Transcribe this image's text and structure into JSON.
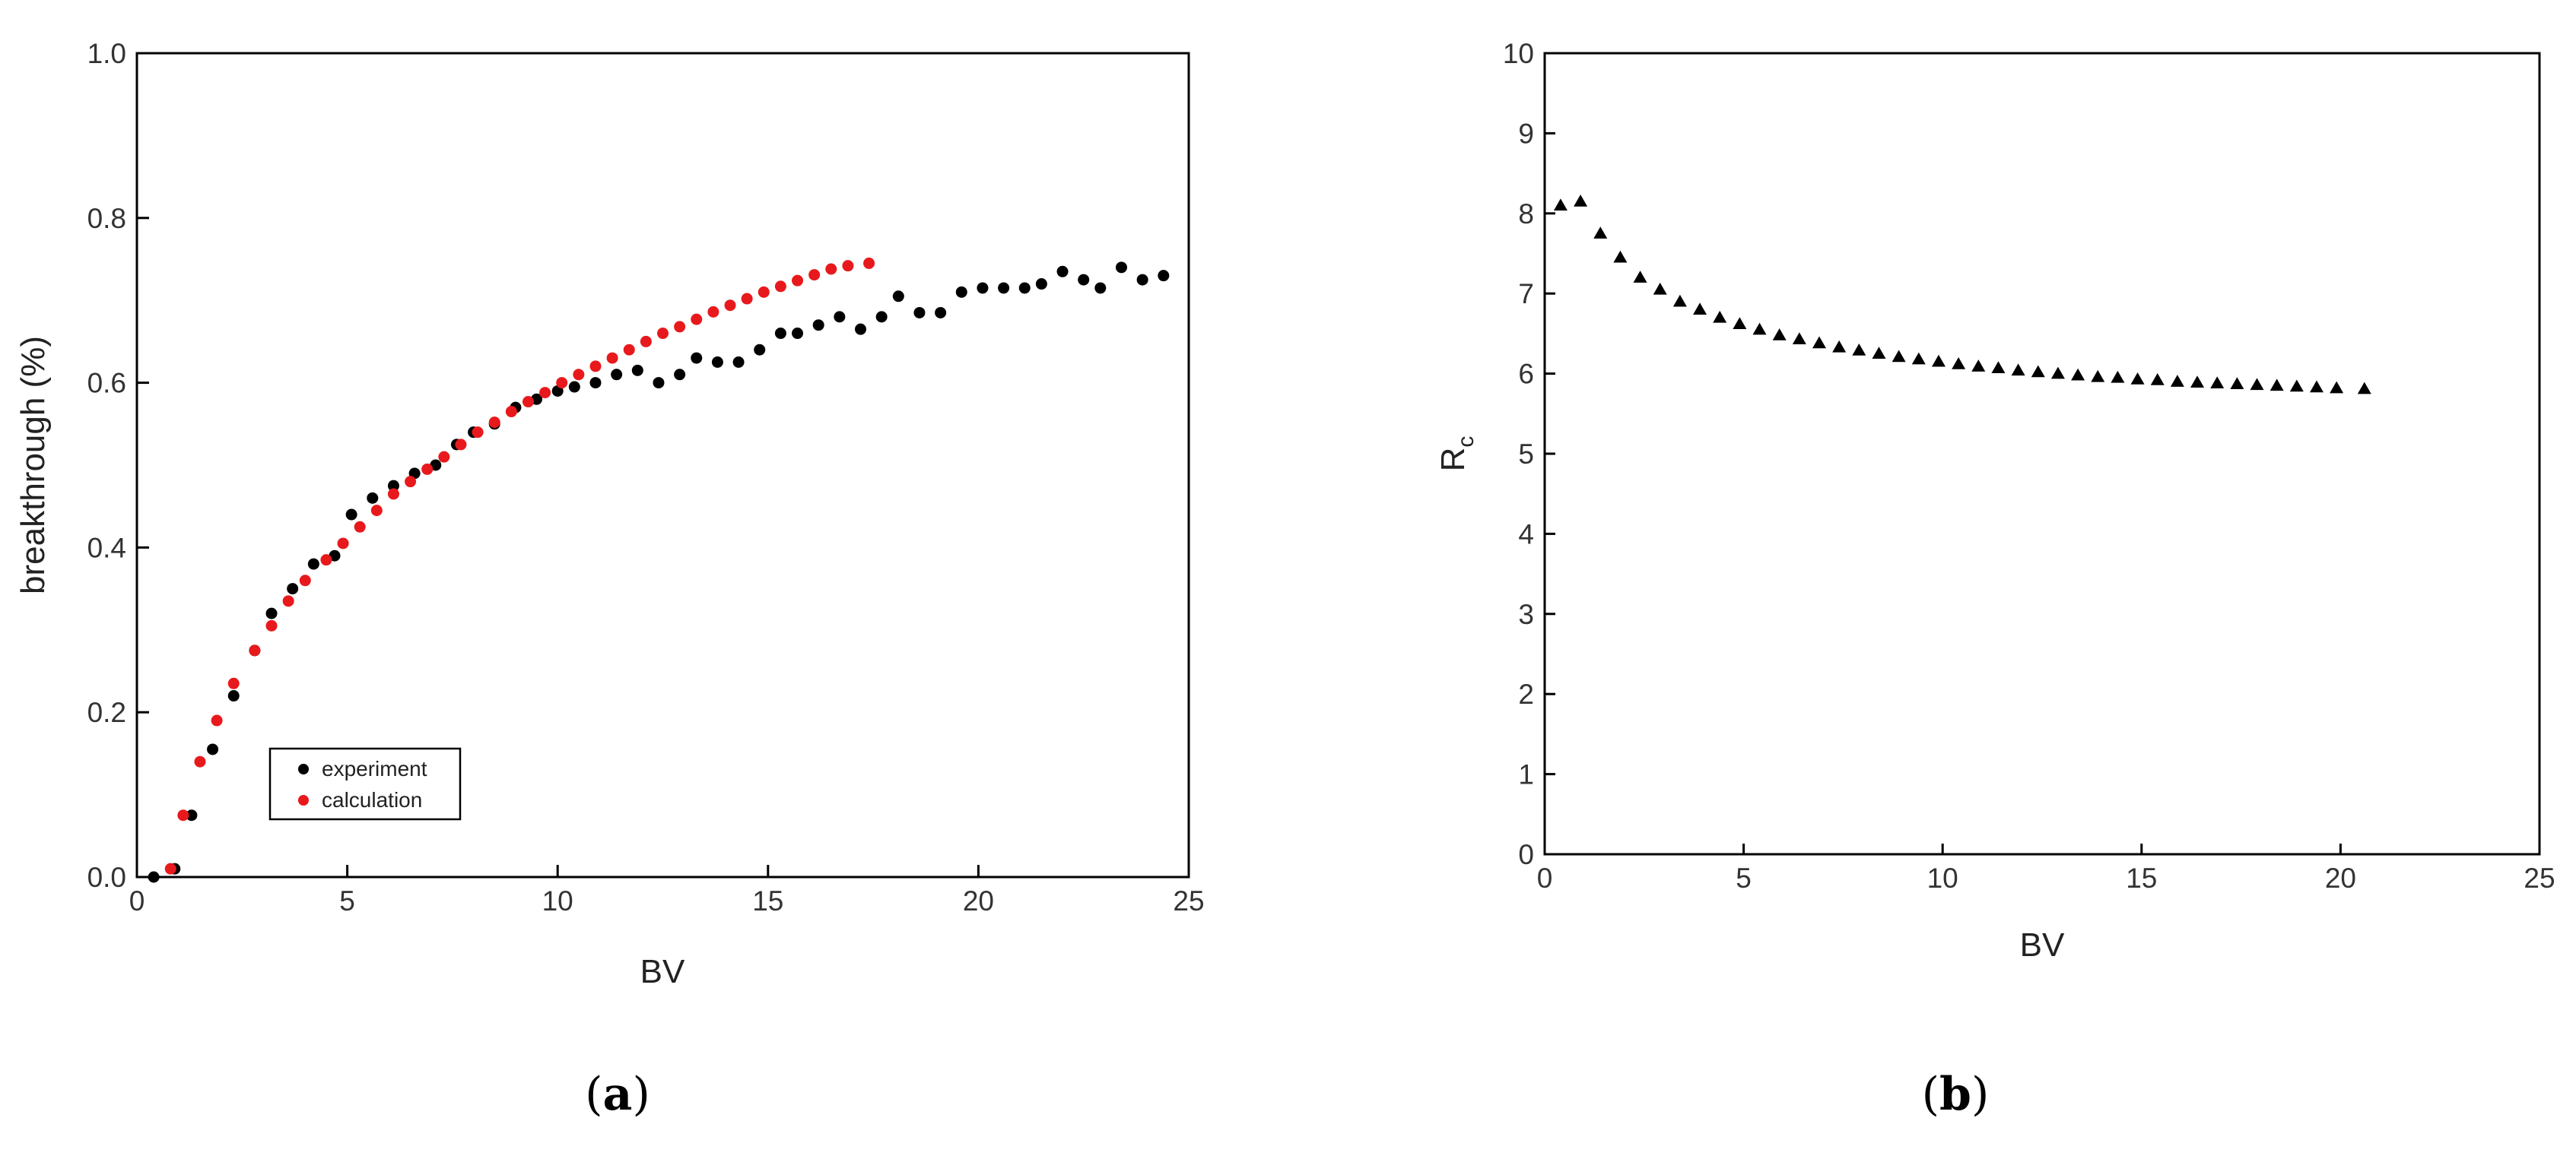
{
  "chart_data": [
    {
      "type": "scatter",
      "panel_label": "a",
      "xlabel": "BV",
      "ylabel": "breakthrough (%)",
      "xlim": [
        0,
        25
      ],
      "ylim": [
        0,
        1.0
      ],
      "x_ticks": [
        "0",
        "5",
        "10",
        "15",
        "20",
        "25"
      ],
      "y_ticks": [
        "0.0",
        "0.2",
        "0.4",
        "0.6",
        "0.8",
        "1.0"
      ],
      "grid": false,
      "legend_position": "bottom-left",
      "series": [
        {
          "name": "experiment",
          "color": "#000000",
          "points": [
            [
              0.4,
              0.0
            ],
            [
              0.9,
              0.01
            ],
            [
              1.3,
              0.075
            ],
            [
              1.8,
              0.155
            ],
            [
              2.3,
              0.22
            ],
            [
              2.8,
              0.275
            ],
            [
              3.2,
              0.32
            ],
            [
              3.7,
              0.35
            ],
            [
              4.2,
              0.38
            ],
            [
              4.7,
              0.39
            ],
            [
              5.1,
              0.44
            ],
            [
              5.6,
              0.46
            ],
            [
              6.1,
              0.475
            ],
            [
              6.6,
              0.49
            ],
            [
              7.1,
              0.5
            ],
            [
              7.6,
              0.525
            ],
            [
              8.0,
              0.54
            ],
            [
              8.5,
              0.55
            ],
            [
              9.0,
              0.57
            ],
            [
              9.5,
              0.58
            ],
            [
              10.0,
              0.59
            ],
            [
              10.4,
              0.595
            ],
            [
              10.9,
              0.6
            ],
            [
              11.4,
              0.61
            ],
            [
              11.9,
              0.615
            ],
            [
              12.4,
              0.6
            ],
            [
              12.9,
              0.61
            ],
            [
              13.3,
              0.63
            ],
            [
              13.8,
              0.625
            ],
            [
              14.3,
              0.625
            ],
            [
              14.8,
              0.64
            ],
            [
              15.3,
              0.66
            ],
            [
              15.7,
              0.66
            ],
            [
              16.2,
              0.67
            ],
            [
              16.7,
              0.68
            ],
            [
              17.2,
              0.665
            ],
            [
              17.7,
              0.68
            ],
            [
              18.1,
              0.705
            ],
            [
              18.6,
              0.685
            ],
            [
              19.1,
              0.685
            ],
            [
              19.6,
              0.71
            ],
            [
              20.1,
              0.715
            ],
            [
              20.6,
              0.715
            ],
            [
              21.1,
              0.715
            ],
            [
              21.5,
              0.72
            ],
            [
              22.0,
              0.735
            ],
            [
              22.5,
              0.725
            ],
            [
              22.9,
              0.715
            ],
            [
              23.4,
              0.74
            ],
            [
              23.9,
              0.725
            ],
            [
              24.4,
              0.73
            ]
          ]
        },
        {
          "name": "calculation",
          "color": "#e8191c",
          "points": [
            [
              0.8,
              0.01
            ],
            [
              1.1,
              0.075
            ],
            [
              1.5,
              0.14
            ],
            [
              1.9,
              0.19
            ],
            [
              2.3,
              0.235
            ],
            [
              2.8,
              0.275
            ],
            [
              3.2,
              0.305
            ],
            [
              3.6,
              0.335
            ],
            [
              4.0,
              0.36
            ],
            [
              4.5,
              0.385
            ],
            [
              4.9,
              0.405
            ],
            [
              5.3,
              0.425
            ],
            [
              5.7,
              0.445
            ],
            [
              6.1,
              0.465
            ],
            [
              6.5,
              0.48
            ],
            [
              6.9,
              0.495
            ],
            [
              7.3,
              0.51
            ],
            [
              7.7,
              0.525
            ],
            [
              8.1,
              0.54
            ],
            [
              8.5,
              0.552
            ],
            [
              8.9,
              0.565
            ],
            [
              9.3,
              0.577
            ],
            [
              9.7,
              0.588
            ],
            [
              10.1,
              0.6
            ],
            [
              10.5,
              0.61
            ],
            [
              10.9,
              0.62
            ],
            [
              11.3,
              0.63
            ],
            [
              11.7,
              0.64
            ],
            [
              12.1,
              0.65
            ],
            [
              12.5,
              0.66
            ],
            [
              12.9,
              0.668
            ],
            [
              13.3,
              0.677
            ],
            [
              13.7,
              0.686
            ],
            [
              14.1,
              0.694
            ],
            [
              14.5,
              0.702
            ],
            [
              14.9,
              0.71
            ],
            [
              15.3,
              0.717
            ],
            [
              15.7,
              0.724
            ],
            [
              16.1,
              0.731
            ],
            [
              16.5,
              0.738
            ],
            [
              16.9,
              0.742
            ],
            [
              17.4,
              0.745
            ]
          ]
        }
      ]
    },
    {
      "type": "scatter",
      "panel_label": "b",
      "xlabel": "BV",
      "ylabel": "R",
      "ylabel_subscript": "c",
      "xlim": [
        0,
        25
      ],
      "ylim": [
        0,
        10
      ],
      "x_ticks": [
        "0",
        "5",
        "10",
        "15",
        "20",
        "25"
      ],
      "y_ticks": [
        "0",
        "1",
        "2",
        "3",
        "4",
        "5",
        "6",
        "7",
        "8",
        "9",
        "10"
      ],
      "grid": false,
      "marker": "triangle",
      "series": [
        {
          "color": "#000000",
          "points": [
            [
              0.4,
              8.1
            ],
            [
              0.9,
              8.15
            ],
            [
              1.4,
              7.75
            ],
            [
              1.9,
              7.45
            ],
            [
              2.4,
              7.2
            ],
            [
              2.9,
              7.05
            ],
            [
              3.4,
              6.9
            ],
            [
              3.9,
              6.8
            ],
            [
              4.4,
              6.7
            ],
            [
              4.9,
              6.62
            ],
            [
              5.4,
              6.55
            ],
            [
              5.9,
              6.48
            ],
            [
              6.4,
              6.43
            ],
            [
              6.9,
              6.38
            ],
            [
              7.4,
              6.33
            ],
            [
              7.9,
              6.29
            ],
            [
              8.4,
              6.25
            ],
            [
              8.9,
              6.21
            ],
            [
              9.4,
              6.18
            ],
            [
              9.9,
              6.15
            ],
            [
              10.4,
              6.12
            ],
            [
              10.9,
              6.09
            ],
            [
              11.4,
              6.07
            ],
            [
              11.9,
              6.04
            ],
            [
              12.4,
              6.02
            ],
            [
              12.9,
              6.0
            ],
            [
              13.4,
              5.98
            ],
            [
              13.9,
              5.96
            ],
            [
              14.4,
              5.95
            ],
            [
              14.9,
              5.93
            ],
            [
              15.4,
              5.92
            ],
            [
              15.9,
              5.9
            ],
            [
              16.4,
              5.89
            ],
            [
              16.9,
              5.88
            ],
            [
              17.4,
              5.87
            ],
            [
              17.9,
              5.86
            ],
            [
              18.4,
              5.85
            ],
            [
              18.9,
              5.84
            ],
            [
              19.4,
              5.83
            ],
            [
              19.9,
              5.82
            ],
            [
              20.6,
              5.81
            ]
          ]
        }
      ]
    }
  ]
}
